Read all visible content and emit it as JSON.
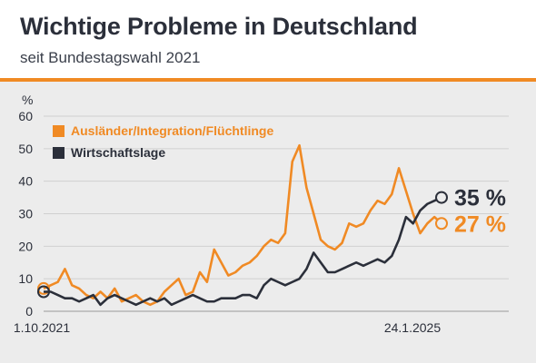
{
  "header": {
    "title": "Wichtige Probleme in Deutschland",
    "subtitle": "seit Bundestagswahl 2021"
  },
  "colors": {
    "accent": "#f08a24",
    "orange_series": "#f08a24",
    "dark_series": "#2b2f3a",
    "background": "#ececec"
  },
  "chart_data": {
    "type": "line",
    "ylabel": "%",
    "ylim": [
      0,
      60
    ],
    "yticks": [
      "0",
      "10",
      "20",
      "30",
      "40",
      "50",
      "60"
    ],
    "x_start_label": "1.10.2021",
    "x_end_label": "24.1.2025",
    "grid": true,
    "legend_position": "top-left",
    "series": [
      {
        "name": "Ausländer/Integration/Flüchtlinge",
        "color": "#f08a24",
        "end_label": "27 %",
        "values": [
          7,
          8,
          9,
          13,
          8,
          7,
          5,
          4,
          6,
          4,
          7,
          3,
          4,
          5,
          3,
          2,
          3,
          6,
          8,
          10,
          5,
          6,
          12,
          9,
          19,
          15,
          11,
          12,
          14,
          15,
          17,
          20,
          22,
          21,
          24,
          46,
          51,
          38,
          30,
          22,
          20,
          19,
          21,
          27,
          26,
          27,
          31,
          34,
          33,
          36,
          44,
          37,
          30,
          24,
          27,
          29,
          27
        ]
      },
      {
        "name": "Wirtschaftslage",
        "color": "#2b2f3a",
        "end_label": "35 %",
        "values": [
          6,
          6,
          5,
          4,
          4,
          3,
          4,
          5,
          2,
          4,
          5,
          4,
          3,
          2,
          3,
          4,
          3,
          4,
          2,
          3,
          4,
          5,
          4,
          3,
          3,
          4,
          4,
          4,
          5,
          5,
          4,
          8,
          10,
          9,
          8,
          9,
          10,
          13,
          18,
          15,
          12,
          12,
          13,
          14,
          15,
          14,
          15,
          16,
          15,
          17,
          22,
          29,
          27,
          31,
          33,
          34,
          35
        ]
      }
    ]
  }
}
